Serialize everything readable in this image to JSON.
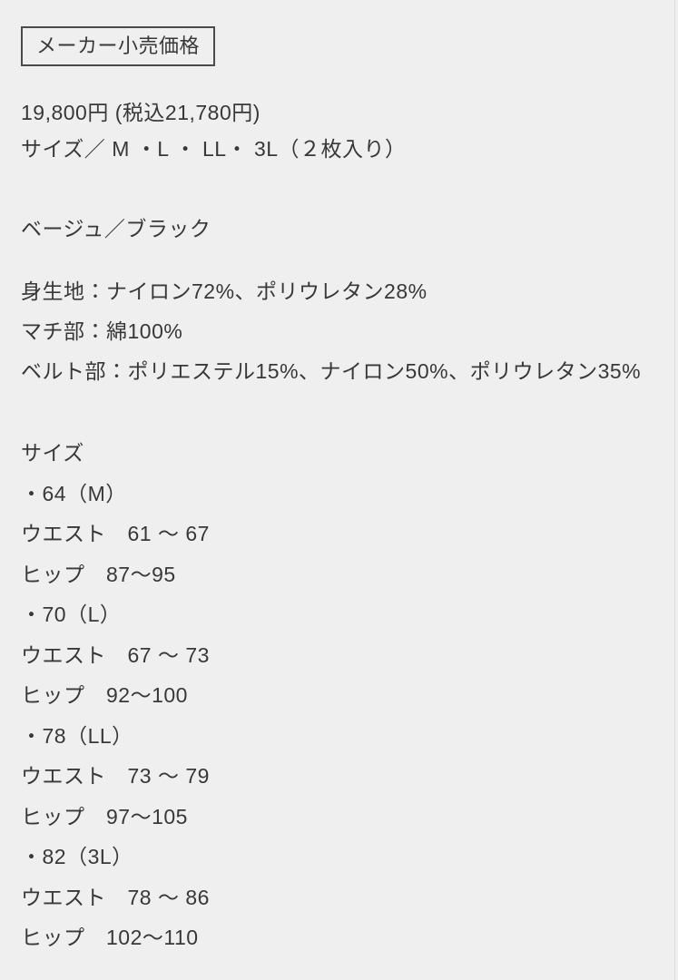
{
  "theme": {
    "background_color": "#efefef",
    "text_color": "#383838",
    "box_border_color": "#4b4b4b"
  },
  "retail_price_box": {
    "label": "メーカー小売価格"
  },
  "pricing": {
    "price": "19,800円 (税込21,780円)",
    "sizes": "サイズ／ M ・L ・ LL・ 3L（２枚入り）"
  },
  "color_options": "ベージュ／ブラック",
  "materials": {
    "body_fabric": "身生地：ナイロン72%、ポリウレタン28%",
    "gusset": "マチ部：綿100%",
    "belt": "ベルト部：ポリエステル15%、ナイロン50%、ポリウレタン35%"
  },
  "size_chart": {
    "heading": "サイズ",
    "entries": [
      {
        "size": "・64（M）",
        "waist": "ウエスト　61 〜 67",
        "hip": "ヒップ　87〜95"
      },
      {
        "size": "・70（L）",
        "waist": "ウエスト　67 〜 73",
        "hip": "ヒップ　92〜100"
      },
      {
        "size": "・78（LL）",
        "waist": "ウエスト　73 〜 79",
        "hip": "ヒップ　97〜105"
      },
      {
        "size": "・82（3L）",
        "waist": "ウエスト　78 〜 86",
        "hip": "ヒップ　102〜110"
      }
    ]
  }
}
